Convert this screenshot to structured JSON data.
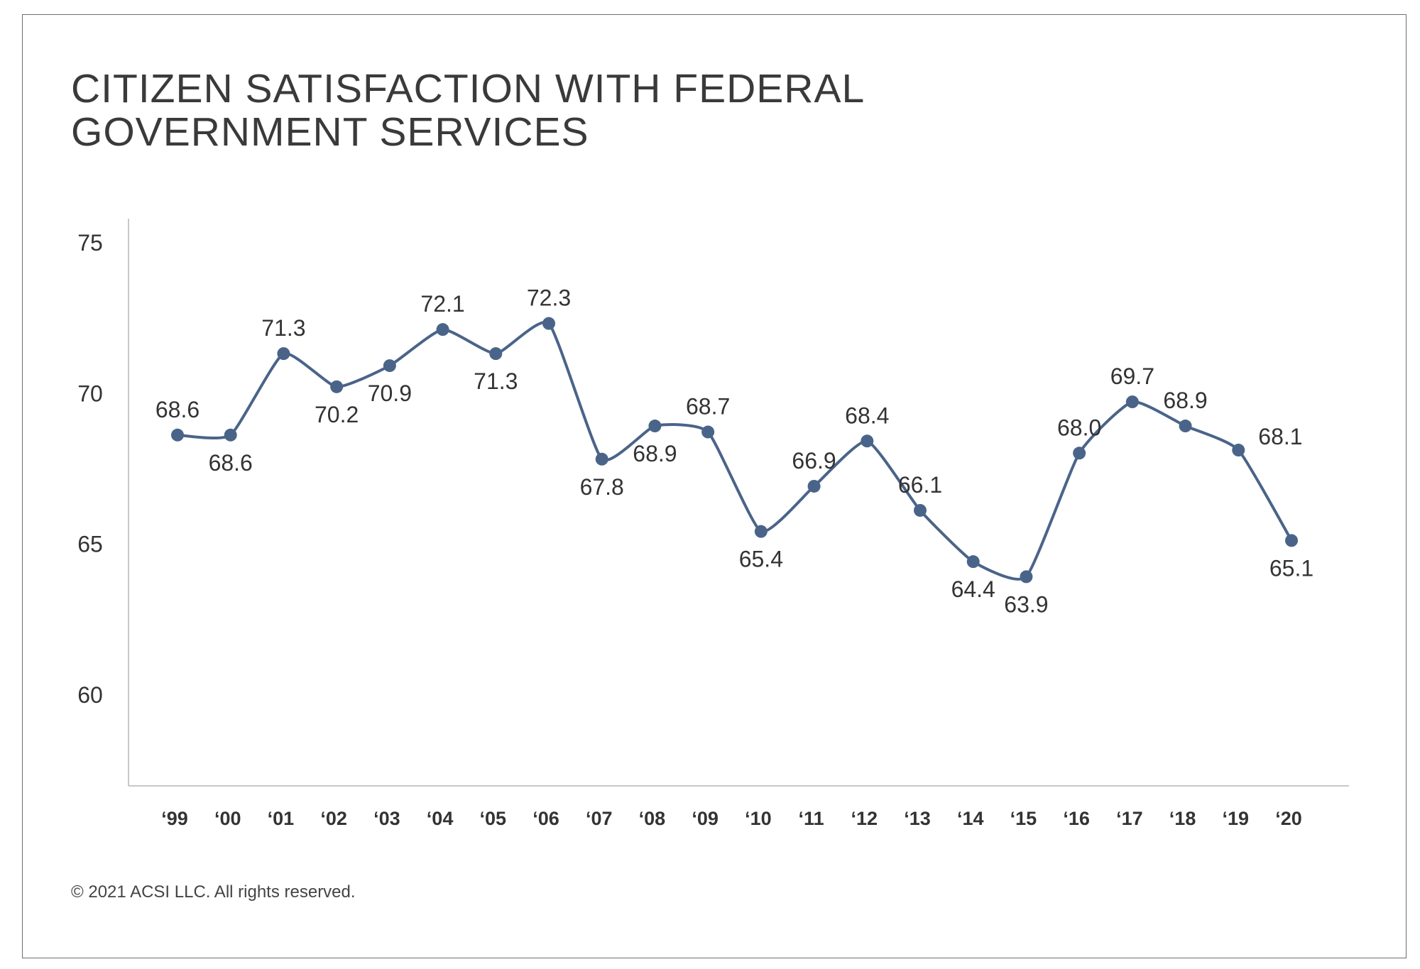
{
  "title_lines": [
    "CITIZEN SATISFACTION WITH FEDERAL",
    "GOVERNMENT SERVICES"
  ],
  "footer": "© 2021 ACSI LLC. All rights reserved.",
  "chart_data": {
    "type": "line",
    "title": "CITIZEN SATISFACTION WITH FEDERAL GOVERNMENT SERVICES",
    "xlabel": "",
    "ylabel": "",
    "ylim": [
      57,
      75.7
    ],
    "yticks": [
      75,
      70,
      65,
      60
    ],
    "categories": [
      "‘99",
      "‘00",
      "‘01",
      "‘02",
      "‘03",
      "‘04",
      "‘05",
      "‘06",
      "‘07",
      "‘08",
      "‘09",
      "‘10",
      "‘11",
      "‘12",
      "‘13",
      "‘14",
      "‘15",
      "‘16",
      "‘17",
      "‘18",
      "‘19",
      "‘20"
    ],
    "series": [
      {
        "values": [
          68.6,
          68.6,
          71.3,
          70.2,
          70.9,
          72.1,
          71.3,
          72.3,
          67.8,
          68.9,
          68.7,
          65.4,
          66.9,
          68.4,
          66.1,
          64.4,
          63.9,
          68.0,
          69.7,
          68.9,
          68.1,
          65.1
        ],
        "color": "#4a6489"
      }
    ],
    "label_positions": [
      "above",
      "below",
      "above",
      "below",
      "below",
      "above",
      "below",
      "above",
      "below",
      "below",
      "above",
      "below",
      "above",
      "above",
      "above",
      "below",
      "below",
      "above",
      "above",
      "above",
      "right",
      "below"
    ],
    "grid": false,
    "legend": "none"
  }
}
